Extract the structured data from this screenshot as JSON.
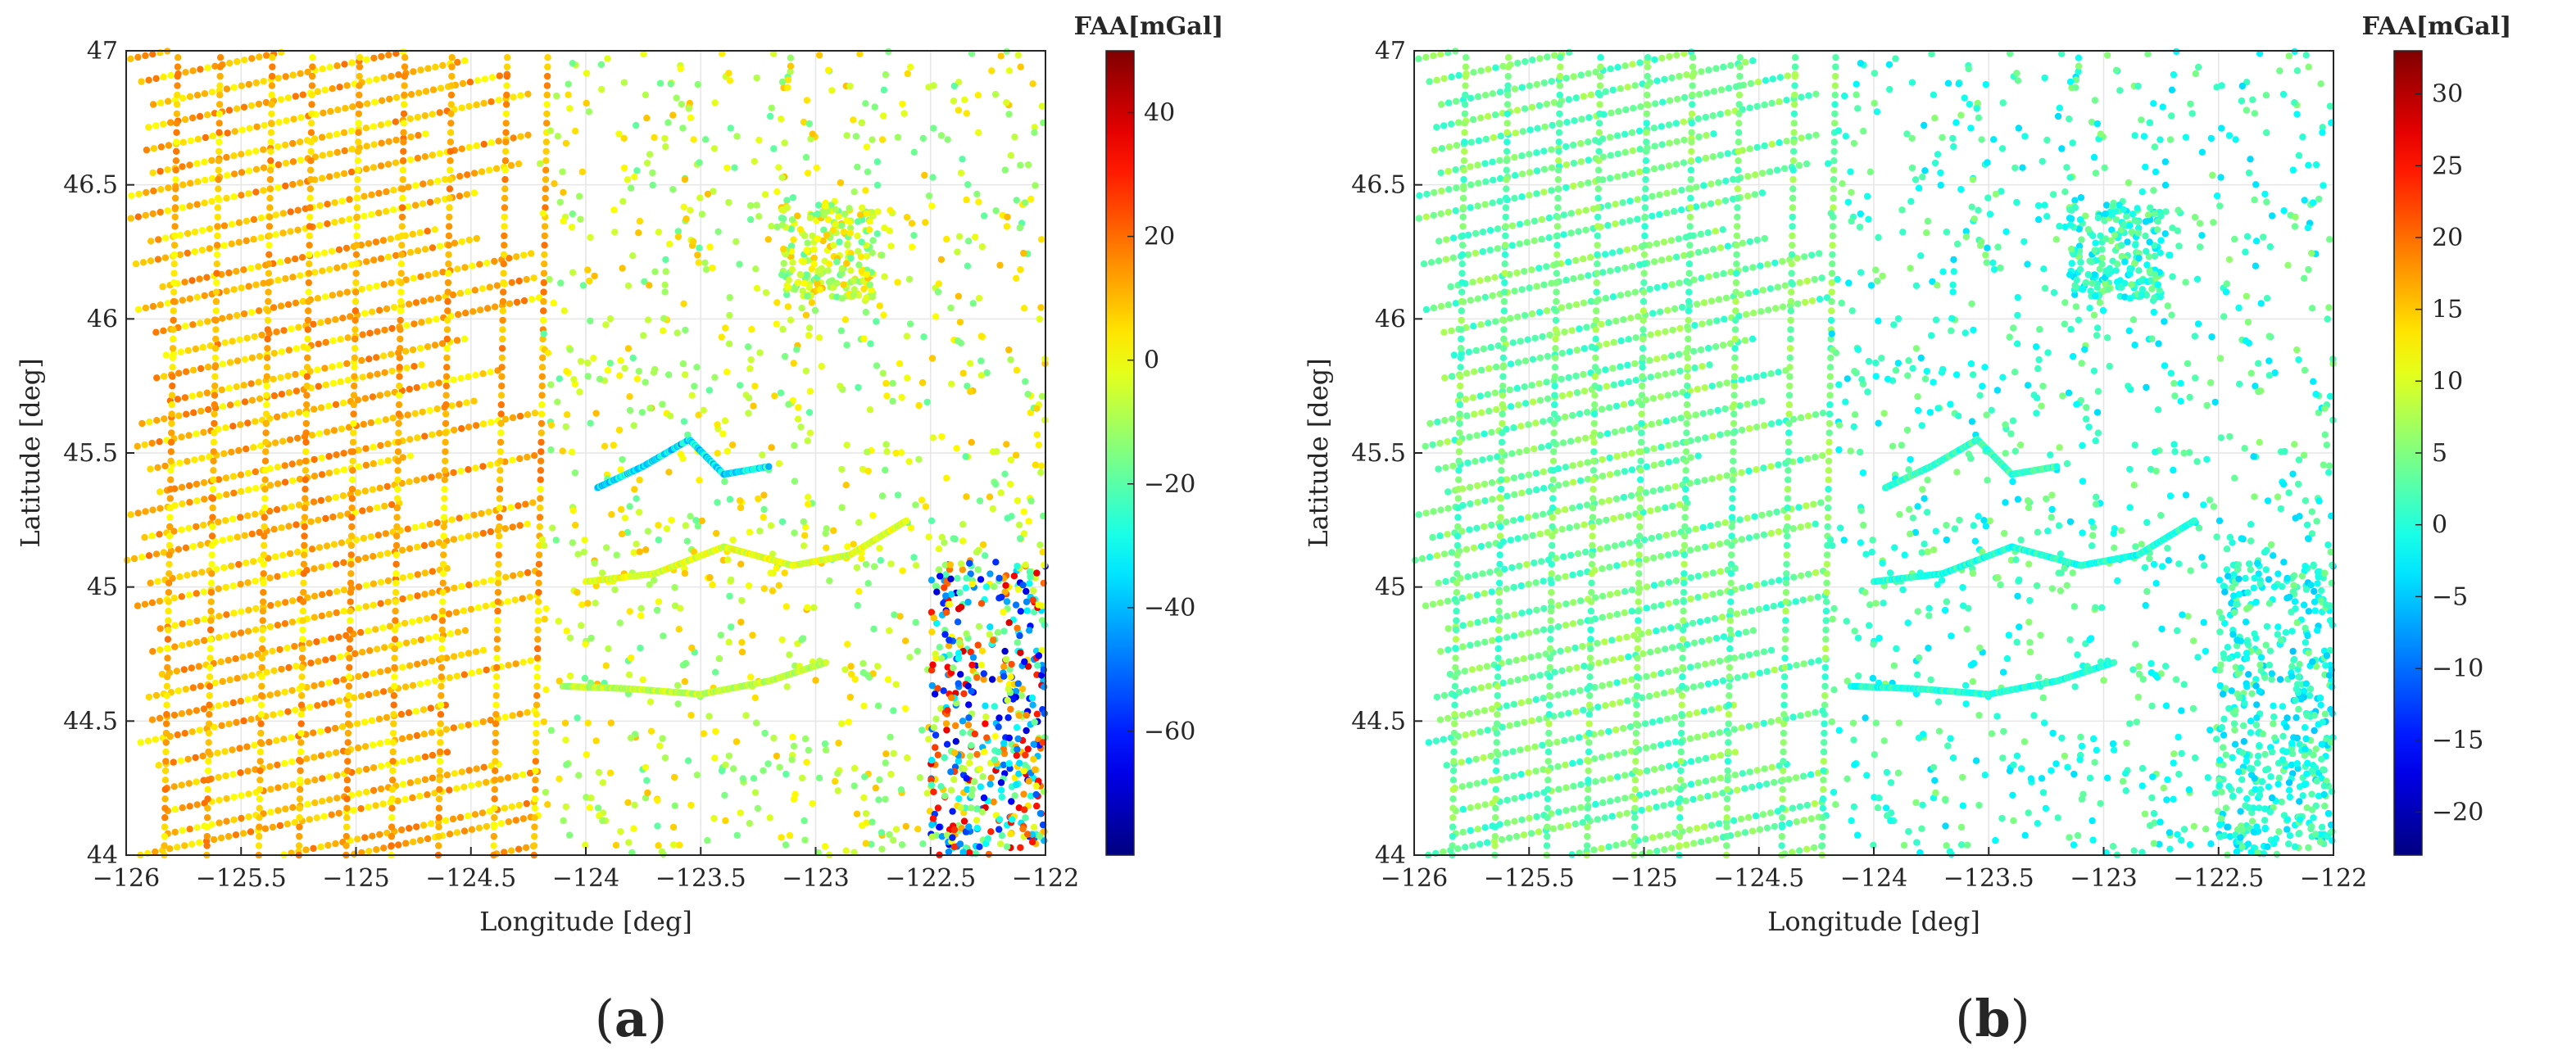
{
  "chart_data": [
    {
      "type": "scatter",
      "panel_label": "a",
      "xlabel": "Longitude [deg]",
      "ylabel": "Latitude [deg]",
      "xlim": [
        -126,
        -122
      ],
      "ylim": [
        44,
        47
      ],
      "xticks": [
        -126,
        -125.5,
        -125,
        -124.5,
        -124,
        -123.5,
        -123,
        -122.5,
        -122
      ],
      "xtick_labels": [
        "−126",
        "−125.5",
        "−125",
        "−124.5",
        "−124",
        "−123.5",
        "−123",
        "−122.5",
        "−122"
      ],
      "yticks": [
        44,
        44.5,
        45,
        45.5,
        46,
        46.5,
        47
      ],
      "ytick_labels": [
        "44",
        "44.5",
        "45",
        "45.5",
        "46",
        "46.5",
        "47"
      ],
      "grid": true,
      "colormap": "jet",
      "colorbar": {
        "title": "FAA[mGal]",
        "clim": [
          -80,
          50
        ],
        "ticks": [
          40,
          20,
          0,
          -20,
          -40,
          -60
        ],
        "tick_labels": [
          "40",
          "20",
          "0",
          "−20",
          "−40",
          "−60"
        ]
      },
      "regions": [
        {
          "desc": "offshore ship tracks",
          "lon": [
            -126,
            -124.2
          ],
          "lat": [
            44,
            47
          ],
          "value_range": [
            0,
            20
          ]
        },
        {
          "desc": "onshore scattered stations",
          "lon": [
            -124.2,
            -122.5
          ],
          "lat": [
            44,
            47
          ],
          "value_range": [
            -20,
            10
          ]
        },
        {
          "desc": "southeastern corner stations",
          "lon": [
            -122.5,
            -122
          ],
          "lat": [
            44,
            45.1
          ],
          "value_range": [
            -70,
            40
          ]
        }
      ],
      "tracks": [
        {
          "desc": "river track (upper)",
          "lon": [
            -123.95,
            -123.75,
            -123.55,
            -123.4,
            -123.2
          ],
          "lat": [
            45.37,
            45.45,
            45.55,
            45.42,
            45.45
          ],
          "value_range": [
            -45,
            -20
          ]
        },
        {
          "desc": "river track (middle)",
          "lon": [
            -124.0,
            -123.7,
            -123.4,
            -123.1,
            -122.85,
            -122.6
          ],
          "lat": [
            45.02,
            45.05,
            45.15,
            45.08,
            45.12,
            45.25
          ],
          "value_range": [
            -10,
            5
          ]
        },
        {
          "desc": "river track (lower)",
          "lon": [
            -124.1,
            -123.8,
            -123.5,
            -123.2,
            -122.95
          ],
          "lat": [
            44.63,
            44.62,
            44.6,
            44.65,
            44.72
          ],
          "value_range": [
            -15,
            0
          ]
        }
      ]
    },
    {
      "type": "scatter",
      "panel_label": "b",
      "xlabel": "Longitude [deg]",
      "ylabel": "Latitude [deg]",
      "xlim": [
        -126,
        -122
      ],
      "ylim": [
        44,
        47
      ],
      "xticks": [
        -126,
        -125.5,
        -125,
        -124.5,
        -124,
        -123.5,
        -123,
        -122.5,
        -122
      ],
      "xtick_labels": [
        "−126",
        "−125.5",
        "−125",
        "−124.5",
        "−124",
        "−123.5",
        "−123",
        "−122.5",
        "−122"
      ],
      "yticks": [
        44,
        44.5,
        45,
        45.5,
        46,
        46.5,
        47
      ],
      "ytick_labels": [
        "44",
        "44.5",
        "45",
        "45.5",
        "46",
        "46.5",
        "47"
      ],
      "grid": true,
      "colormap": "jet",
      "colorbar": {
        "title": "FAA[mGal]",
        "clim": [
          -23,
          33
        ],
        "ticks": [
          30,
          25,
          20,
          15,
          10,
          5,
          0,
          -5,
          -10,
          -15,
          -20
        ],
        "tick_labels": [
          "30",
          "25",
          "20",
          "15",
          "10",
          "5",
          "0",
          "−5",
          "−10",
          "−15",
          "−20"
        ]
      },
      "regions": [
        {
          "desc": "offshore ship tracks",
          "lon": [
            -126,
            -124.2
          ],
          "lat": [
            44,
            47
          ],
          "value_range": [
            0,
            8
          ]
        },
        {
          "desc": "onshore scattered stations",
          "lon": [
            -124.2,
            -122.5
          ],
          "lat": [
            44,
            47
          ],
          "value_range": [
            -4,
            6
          ]
        },
        {
          "desc": "southeastern corner stations",
          "lon": [
            -122.5,
            -122
          ],
          "lat": [
            44,
            45.1
          ],
          "value_range": [
            -5,
            5
          ]
        }
      ],
      "tracks": [
        {
          "desc": "river track (upper)",
          "lon": [
            -123.95,
            -123.75,
            -123.55,
            -123.4,
            -123.2
          ],
          "lat": [
            45.37,
            45.45,
            45.55,
            45.42,
            45.45
          ],
          "value_range": [
            -2,
            5
          ]
        },
        {
          "desc": "river track (middle)",
          "lon": [
            -124.0,
            -123.7,
            -123.4,
            -123.1,
            -122.85,
            -122.6
          ],
          "lat": [
            45.02,
            45.05,
            45.15,
            45.08,
            45.12,
            45.25
          ],
          "value_range": [
            -3,
            3
          ]
        },
        {
          "desc": "river track (lower)",
          "lon": [
            -124.1,
            -123.8,
            -123.5,
            -123.2,
            -122.95
          ],
          "lat": [
            44.63,
            44.62,
            44.6,
            44.65,
            44.72
          ],
          "value_range": [
            -3,
            3
          ]
        }
      ]
    }
  ],
  "captions": [
    {
      "open": "(",
      "letter": "a",
      "close": ")"
    },
    {
      "open": "(",
      "letter": "b",
      "close": ")"
    }
  ]
}
